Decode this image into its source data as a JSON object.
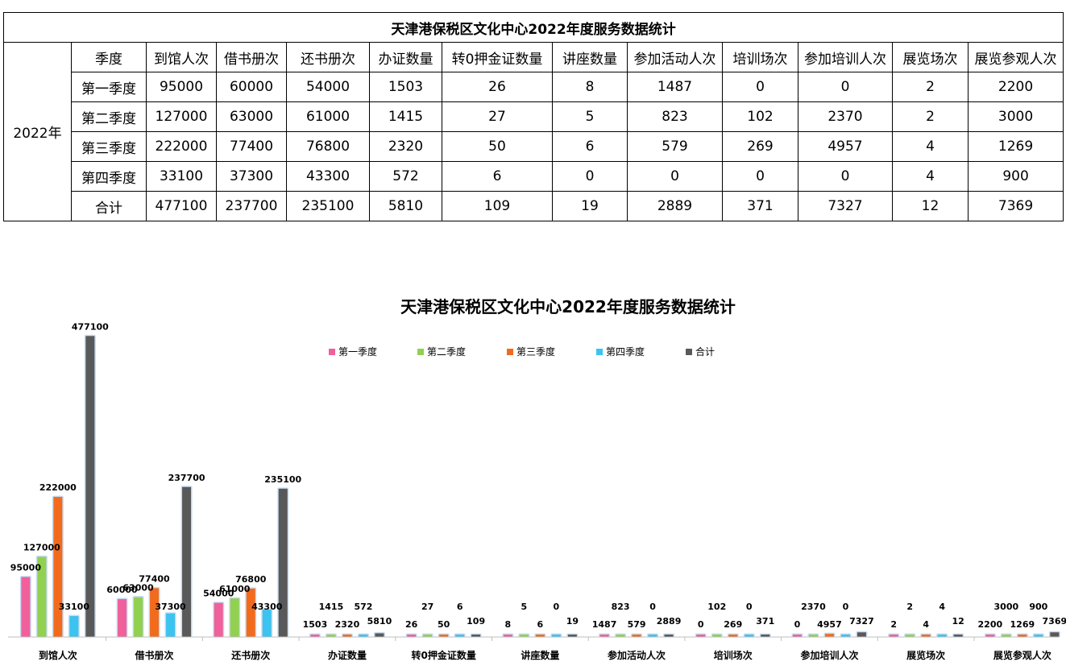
{
  "table": {
    "title": "天津港保税区文化中心2022年度服务数据统计",
    "year_label": "2022年",
    "season_header": "季度",
    "columns": [
      "到馆人次",
      "借书册次",
      "还书册次",
      "办证数量",
      "转0押金证数量",
      "讲座数量",
      "参加活动人次",
      "培训场次",
      "参加培训人次",
      "展览场次",
      "展览参观人次"
    ],
    "rows": [
      {
        "label": "第一季度",
        "values": [
          "95000",
          "60000",
          "54000",
          "1503",
          "26",
          "8",
          "1487",
          "0",
          "0",
          "2",
          "2200"
        ]
      },
      {
        "label": "第二季度",
        "values": [
          "127000",
          "63000",
          "61000",
          "1415",
          "27",
          "5",
          "823",
          "102",
          "2370",
          "2",
          "3000"
        ]
      },
      {
        "label": "第三季度",
        "values": [
          "222000",
          "77400",
          "76800",
          "2320",
          "50",
          "6",
          "579",
          "269",
          "4957",
          "4",
          "1269"
        ]
      },
      {
        "label": "第四季度",
        "values": [
          "33100",
          "37300",
          "43300",
          "572",
          "6",
          "0",
          "0",
          "0",
          "0",
          "4",
          "900"
        ]
      },
      {
        "label": "合计",
        "values": [
          "477100",
          "237700",
          "235100",
          "5810",
          "109",
          "19",
          "2889",
          "371",
          "7327",
          "12",
          "7369"
        ]
      }
    ]
  },
  "chart_data": {
    "type": "bar",
    "title": "天津港保税区文化中心2022年度服务数据统计",
    "categories": [
      "到馆人次",
      "借书册次",
      "还书册次",
      "办证数量",
      "转0押金证数量",
      "讲座数量",
      "参加活动人次",
      "培训场次",
      "参加培训人次",
      "展览场次",
      "展览参观人次"
    ],
    "series": [
      {
        "name": "第一季度",
        "color": "#f0609a",
        "values": [
          95000,
          60000,
          54000,
          1503,
          26,
          8,
          1487,
          0,
          0,
          2,
          2200
        ]
      },
      {
        "name": "第二季度",
        "color": "#92d050",
        "values": [
          127000,
          63000,
          61000,
          1415,
          27,
          5,
          823,
          102,
          2370,
          2,
          3000
        ]
      },
      {
        "name": "第三季度",
        "color": "#f26b1d",
        "values": [
          222000,
          77400,
          76800,
          2320,
          50,
          6,
          579,
          269,
          4957,
          4,
          1269
        ]
      },
      {
        "name": "第四季度",
        "color": "#3cc3f0",
        "values": [
          33100,
          37300,
          43300,
          572,
          6,
          0,
          0,
          0,
          0,
          4,
          900
        ]
      },
      {
        "name": "合计",
        "color": "#595959",
        "values": [
          477100,
          237700,
          235100,
          5810,
          109,
          19,
          2889,
          371,
          7327,
          12,
          7369
        ]
      }
    ],
    "ylim": [
      0,
      480000
    ],
    "grid": false,
    "legend_position": "top-center",
    "bar_outline_color": "#c5daf1"
  }
}
